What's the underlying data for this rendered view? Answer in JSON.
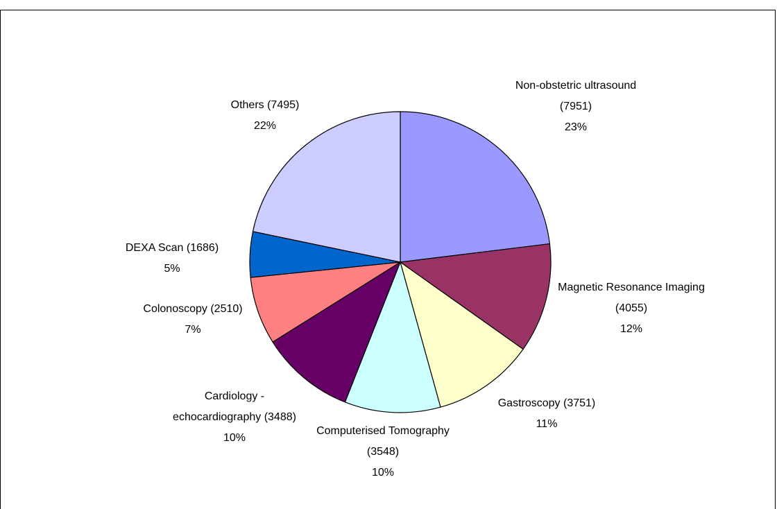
{
  "chart_data": {
    "type": "pie",
    "title": "",
    "start_angle_deg": 0,
    "direction": "clockwise",
    "slices": [
      {
        "label_lines": [
          "Non-obstetric ultrasound",
          "(7951)",
          "23%"
        ],
        "name": "Non-obstetric ultrasound",
        "value": 7951,
        "percent_label": "23%",
        "color": "#9999ff"
      },
      {
        "label_lines": [
          "Magnetic Resonance Imaging",
          "(4055)",
          "12%"
        ],
        "name": "Magnetic Resonance Imaging",
        "value": 4055,
        "percent_label": "12%",
        "color": "#993366"
      },
      {
        "label_lines": [
          "Gastroscopy  (3751)",
          "11%"
        ],
        "name": "Gastroscopy",
        "value": 3751,
        "percent_label": "11%",
        "color": "#ffffcc"
      },
      {
        "label_lines": [
          "Computerised Tomography",
          "(3548)",
          "10%"
        ],
        "name": "Computerised Tomography",
        "value": 3548,
        "percent_label": "10%",
        "color": "#ccffff"
      },
      {
        "label_lines": [
          "Cardiology -",
          "echocardiography  (3488)",
          "10%"
        ],
        "name": "Cardiology - echocardiography",
        "value": 3488,
        "percent_label": "10%",
        "color": "#660066"
      },
      {
        "label_lines": [
          "Colonoscopy  (2510)",
          "7%"
        ],
        "name": "Colonoscopy",
        "value": 2510,
        "percent_label": "7%",
        "color": "#ff8080"
      },
      {
        "label_lines": [
          "DEXA Scan  (1686)",
          "5%"
        ],
        "name": "DEXA Scan",
        "value": 1686,
        "percent_label": "5%",
        "color": "#0066cc"
      },
      {
        "label_lines": [
          "Others  (7495)",
          "22%"
        ],
        "name": "Others",
        "value": 7495,
        "percent_label": "22%",
        "color": "#ccccff"
      }
    ]
  }
}
